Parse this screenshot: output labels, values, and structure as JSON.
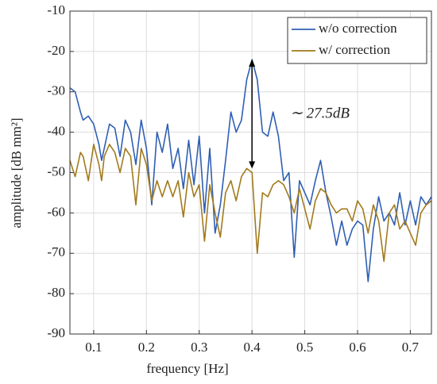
{
  "chart_data": {
    "type": "line",
    "xlabel": "frequency [Hz]",
    "ylabel": "amplitude [dB mm²]",
    "x": [
      0.055,
      0.065,
      0.075,
      0.08,
      0.09,
      0.1,
      0.11,
      0.115,
      0.12,
      0.13,
      0.14,
      0.15,
      0.16,
      0.17,
      0.18,
      0.19,
      0.2,
      0.21,
      0.22,
      0.23,
      0.24,
      0.25,
      0.26,
      0.27,
      0.28,
      0.29,
      0.3,
      0.31,
      0.32,
      0.33,
      0.34,
      0.35,
      0.36,
      0.37,
      0.38,
      0.39,
      0.4,
      0.41,
      0.42,
      0.43,
      0.44,
      0.45,
      0.46,
      0.47,
      0.48,
      0.49,
      0.5,
      0.51,
      0.52,
      0.53,
      0.54,
      0.55,
      0.56,
      0.57,
      0.58,
      0.59,
      0.6,
      0.61,
      0.62,
      0.63,
      0.64,
      0.65,
      0.66,
      0.67,
      0.68,
      0.69,
      0.7,
      0.71,
      0.72,
      0.73,
      0.74
    ],
    "series": [
      {
        "name": "w/o correction",
        "color": "#2f5fb3",
        "values": [
          -29,
          -30,
          -35,
          -37,
          -36,
          -38,
          -43,
          -47,
          -44,
          -38,
          -39,
          -46,
          -37,
          -40,
          -48,
          -37,
          -44,
          -58,
          -40,
          -45,
          -38,
          -49,
          -44,
          -54,
          -42,
          -53,
          -41,
          -60,
          -44,
          -65,
          -58,
          -47,
          -35,
          -40,
          -37,
          -27,
          -22,
          -27,
          -40,
          -41,
          -35,
          -41,
          -52,
          -50,
          -71,
          -52,
          -55,
          -58,
          -52,
          -47,
          -55,
          -61,
          -68,
          -62,
          -68,
          -64,
          -62,
          -63,
          -77,
          -64,
          -56,
          -62,
          -60,
          -63,
          -55,
          -63,
          -57,
          -63,
          -56,
          -58,
          -56
        ]
      },
      {
        "name": "w/ correction",
        "color": "#a27a1c",
        "values": [
          -47,
          -51,
          -45,
          -46,
          -52,
          -43,
          -48,
          -52,
          -46,
          -43,
          -45,
          -50,
          -44,
          -46,
          -58,
          -44,
          -48,
          -57,
          -52,
          -56,
          -52,
          -56,
          -52,
          -61,
          -50,
          -56,
          -53,
          -67,
          -53,
          -60,
          -66,
          -55,
          -52,
          -57,
          -51,
          -49,
          -50,
          -70,
          -55,
          -56,
          -53,
          -52,
          -53,
          -56,
          -60,
          -54,
          -59,
          -64,
          -57,
          -54,
          -55,
          -58,
          -60,
          -59,
          -59,
          -62,
          -57,
          -59,
          -65,
          -58,
          -62,
          -72,
          -60,
          -58,
          -64,
          -62,
          -65,
          -68,
          -60,
          -58,
          -57
        ]
      }
    ],
    "annotation": {
      "text": "∼ 27.5dB",
      "x": 0.4,
      "y_start": -22,
      "y_end": -49
    },
    "xlim": [
      0.055,
      0.74
    ],
    "ylim": [
      -90,
      -10
    ],
    "xticks": [
      0.1,
      0.2,
      0.3,
      0.4,
      0.5,
      0.6,
      0.7
    ],
    "yticks": [
      -90,
      -80,
      -70,
      -60,
      -50,
      -40,
      -30,
      -20,
      -10
    ],
    "grid": true,
    "legend": "upper right"
  }
}
